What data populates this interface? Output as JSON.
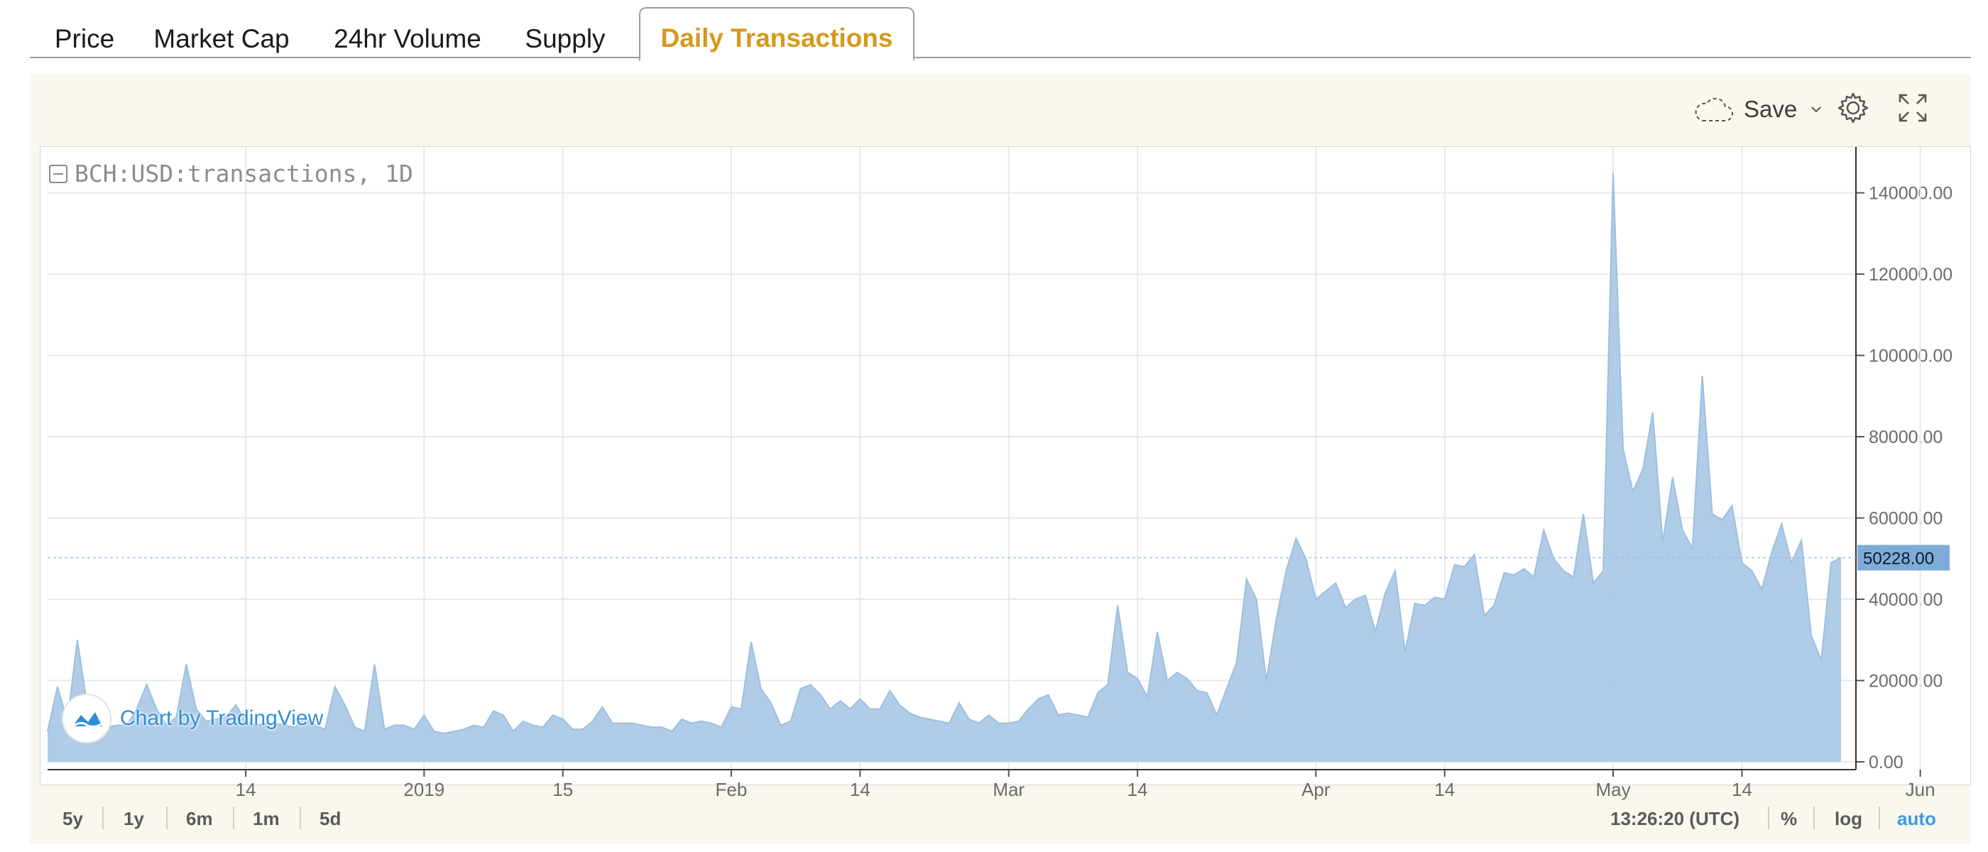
{
  "tabs": [
    {
      "label": "Price"
    },
    {
      "label": "Market Cap"
    },
    {
      "label": "24hr Volume"
    },
    {
      "label": "Supply"
    },
    {
      "label": "Daily Transactions"
    }
  ],
  "toolbar": {
    "save_label": "Save"
  },
  "chart": {
    "series_label": "BCH:USD:transactions, 1D",
    "watermark": "Chart by TradingView",
    "last_value_label": "50228.00"
  },
  "footer": {
    "ranges": [
      "5y",
      "1y",
      "6m",
      "1m",
      "5d"
    ],
    "time": "13:26:20 (UTC)",
    "percent": "%",
    "log": "log",
    "auto": "auto"
  },
  "colors": {
    "accent_tab": "#d49a1e",
    "area_fill": "#adc9e6",
    "area_line": "#9dbfe3",
    "last_value_bg": "#7fabd8",
    "watermark": "#2f8ed9"
  },
  "chart_data": {
    "type": "area",
    "title": "BCH:USD:transactions, 1D",
    "series": [
      {
        "values": [
          7500,
          18500,
          10000,
          30000,
          14000,
          8000,
          8500,
          9000,
          9000,
          13000,
          19000,
          13000,
          9000,
          11000,
          24000,
          13000,
          10000,
          10500,
          11000,
          14000,
          10000,
          9000,
          9500,
          9500,
          9000,
          8500,
          11000,
          9000,
          8000,
          18500,
          14000,
          8500,
          7500,
          24000,
          8000,
          9000,
          9000,
          8000,
          11500,
          7500,
          7000,
          7500,
          8000,
          9000,
          8500,
          12500,
          11500,
          7500,
          10000,
          9000,
          8500,
          11500,
          10500,
          8000,
          8000,
          10000,
          13500,
          9500,
          9500,
          9500,
          9000,
          8500,
          8500,
          7500,
          10500,
          9500,
          10000,
          9500,
          8500,
          13500,
          13000,
          29500,
          18000,
          14500,
          9000,
          10000,
          18000,
          19000,
          16500,
          13000,
          15000,
          13000,
          15500,
          13000,
          13000,
          17500,
          14000,
          12000,
          11000,
          10500,
          10000,
          9500,
          14500,
          10500,
          9500,
          11500,
          9500,
          9500,
          10000,
          13000,
          15500,
          16500,
          11500,
          12000,
          11500,
          11000,
          17000,
          19000,
          38500,
          22000,
          20500,
          16000,
          32000,
          20000,
          22000,
          20500,
          17500,
          17000,
          11500,
          18000,
          24500,
          45000,
          40000,
          20000,
          35000,
          47000,
          55000,
          50000,
          40000,
          42000,
          44000,
          38000,
          40000,
          41000,
          32000,
          41500,
          47000,
          27000,
          39000,
          38500,
          40500,
          40000,
          48500,
          48000,
          51000,
          36000,
          38500,
          46500,
          46000,
          47500,
          45500,
          57000,
          50000,
          47000,
          45500,
          61000,
          44000,
          47000,
          145000,
          77000,
          66500,
          72000,
          86000,
          54000,
          70000,
          57000,
          52500,
          95000,
          61000,
          59500,
          63000,
          49000,
          47000,
          42500,
          51500,
          58500,
          49000,
          54500,
          31000,
          25000,
          49000,
          50228
        ]
      }
    ],
    "x_tick_labels": [
      "14",
      "2019",
      "15",
      "Feb",
      "14",
      "Mar",
      "14",
      "Apr",
      "14",
      "May",
      "14",
      "Jun"
    ],
    "x_tick_dates": [
      "2018-12-14",
      "2019-01-01",
      "2019-01-15",
      "2019-02-01",
      "2019-02-14",
      "2019-03-01",
      "2019-03-14",
      "2019-04-01",
      "2019-04-14",
      "2019-05-01",
      "2019-05-14",
      "2019-06-01"
    ],
    "y_tick_labels": [
      "0.00",
      "20000.00",
      "40000.00",
      "60000.00",
      "80000.00",
      "100000.00",
      "120000.00",
      "140000.00"
    ],
    "ylim": [
      0,
      145000
    ],
    "last_value": 50228,
    "grid": true
  }
}
